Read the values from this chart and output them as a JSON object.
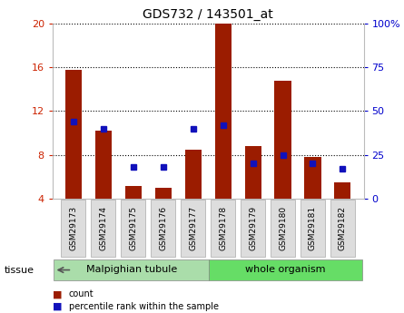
{
  "title": "GDS732 / 143501_at",
  "samples": [
    "GSM29173",
    "GSM29174",
    "GSM29175",
    "GSM29176",
    "GSM29177",
    "GSM29178",
    "GSM29179",
    "GSM29180",
    "GSM29181",
    "GSM29182"
  ],
  "count_values": [
    15.8,
    10.2,
    5.2,
    5.0,
    8.5,
    20.0,
    8.8,
    14.8,
    7.8,
    5.5
  ],
  "percentile_values": [
    44,
    40,
    18,
    18,
    40,
    42,
    20,
    25,
    20,
    17
  ],
  "left_ylim": [
    4,
    20
  ],
  "left_yticks": [
    4,
    8,
    12,
    16,
    20
  ],
  "right_ylim": [
    0,
    100
  ],
  "right_yticks": [
    0,
    25,
    50,
    75,
    100
  ],
  "right_yticklabels": [
    "0",
    "25",
    "50",
    "75",
    "100%"
  ],
  "bar_color": "#9b1c00",
  "dot_color": "#1111bb",
  "bar_width": 0.55,
  "tissue_groups": [
    {
      "label": "Malpighian tubule",
      "start": 0,
      "end": 4,
      "color": "#aaddaa"
    },
    {
      "label": "whole organism",
      "start": 5,
      "end": 9,
      "color": "#66dd66"
    }
  ],
  "legend_items": [
    {
      "label": "count",
      "color": "#9b1c00"
    },
    {
      "label": "percentile rank within the sample",
      "color": "#1111bb"
    }
  ],
  "grid_color": "#000000",
  "grid_linestyle": ":",
  "grid_linewidth": 0.8,
  "tick_color_left": "#cc2200",
  "tick_color_right": "#0000cc",
  "bg_color": "#ffffff",
  "plot_bg_color": "#ffffff",
  "frame_color": "#bbbbbb",
  "xlabel_box_color": "#dddddd",
  "xlabel_box_edge": "#aaaaaa"
}
